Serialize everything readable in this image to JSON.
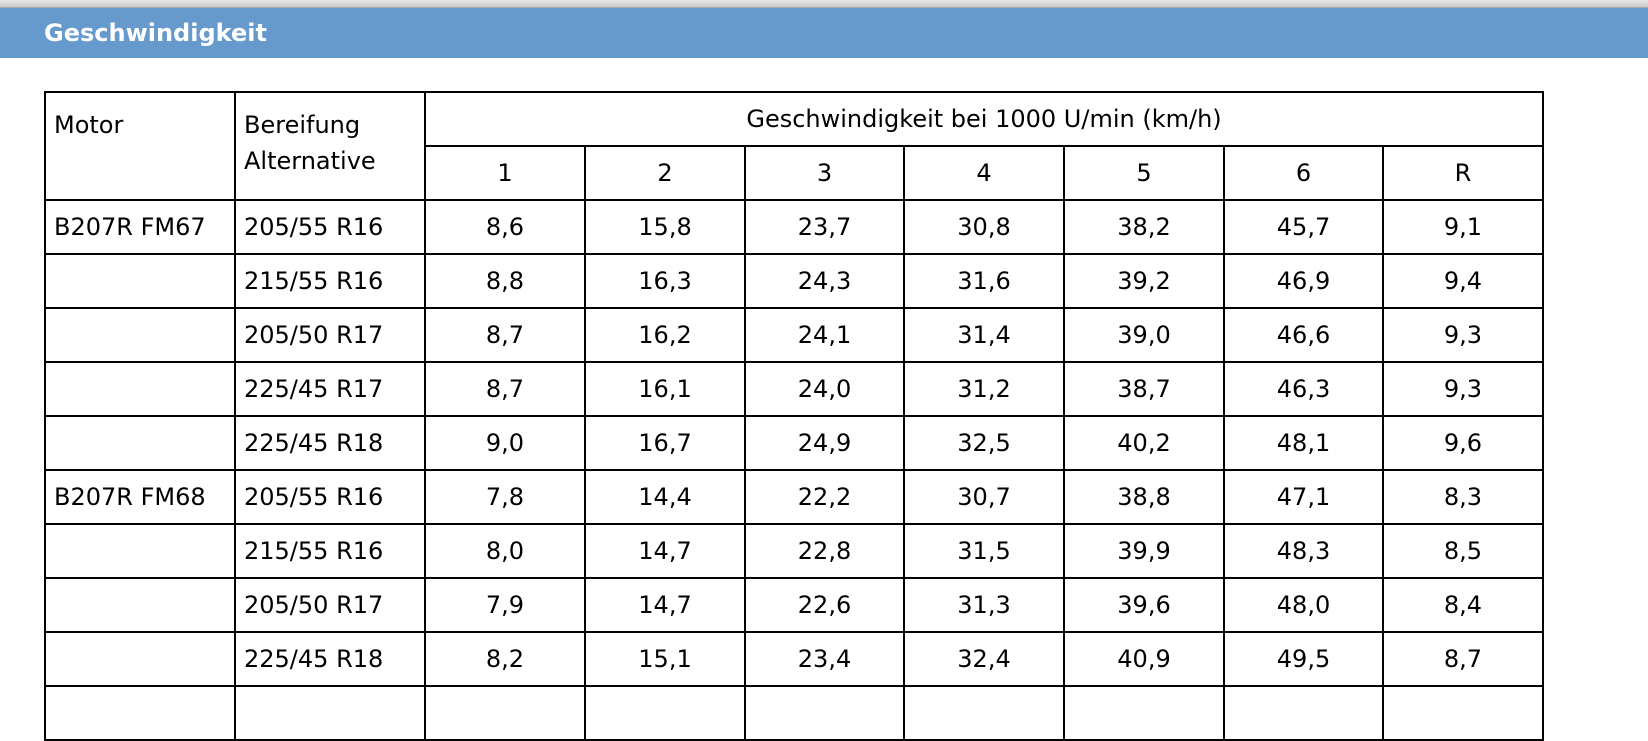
{
  "section": {
    "title": "Geschwindigkeit"
  },
  "table": {
    "headers": {
      "motor": "Motor",
      "tire_line1": "Bereifung",
      "tire_line2": "Alternative",
      "group": "Geschwindigkeit bei 1000 U/min (km/h)",
      "gears": [
        "1",
        "2",
        "3",
        "4",
        "5",
        "6",
        "R"
      ]
    },
    "rows": [
      {
        "motor": "B207R FM67",
        "tire": "205/55 R16",
        "values": [
          "8,6",
          "15,8",
          "23,7",
          "30,8",
          "38,2",
          "45,7",
          "9,1"
        ]
      },
      {
        "motor": "",
        "tire": "215/55 R16",
        "values": [
          "8,8",
          "16,3",
          "24,3",
          "31,6",
          "39,2",
          "46,9",
          "9,4"
        ]
      },
      {
        "motor": "",
        "tire": "205/50 R17",
        "values": [
          "8,7",
          "16,2",
          "24,1",
          "31,4",
          "39,0",
          "46,6",
          "9,3"
        ]
      },
      {
        "motor": "",
        "tire": "225/45 R17",
        "values": [
          "8,7",
          "16,1",
          "24,0",
          "31,2",
          "38,7",
          "46,3",
          "9,3"
        ]
      },
      {
        "motor": "",
        "tire": "225/45 R18",
        "values": [
          "9,0",
          "16,7",
          "24,9",
          "32,5",
          "40,2",
          "48,1",
          "9,6"
        ]
      },
      {
        "motor": "B207R FM68",
        "tire": "205/55 R16",
        "values": [
          "7,8",
          "14,4",
          "22,2",
          "30,7",
          "38,8",
          "47,1",
          "8,3"
        ]
      },
      {
        "motor": "",
        "tire": "215/55 R16",
        "values": [
          "8,0",
          "14,7",
          "22,8",
          "31,5",
          "39,9",
          "48,3",
          "8,5"
        ]
      },
      {
        "motor": "",
        "tire": "205/50 R17",
        "values": [
          "7,9",
          "14,7",
          "22,6",
          "31,3",
          "39,6",
          "48,0",
          "8,4"
        ]
      },
      {
        "motor": "",
        "tire": "225/45 R18",
        "values": [
          "8,2",
          "15,1",
          "23,4",
          "32,4",
          "40,9",
          "49,5",
          "8,7"
        ]
      },
      {
        "motor": "",
        "tire": "",
        "values": [
          "",
          "",
          "",
          "",
          "",
          "",
          ""
        ]
      }
    ]
  }
}
